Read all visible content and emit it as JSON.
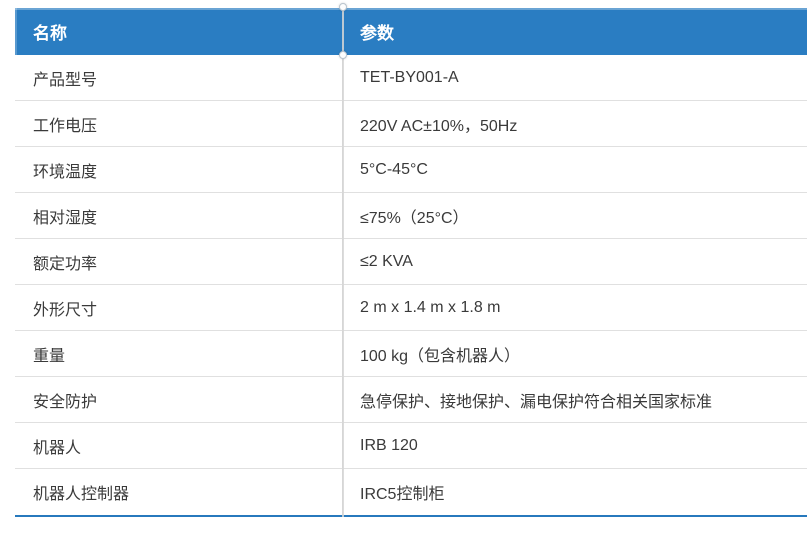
{
  "table": {
    "header": {
      "name": "名称",
      "param": "参数"
    },
    "rows": [
      {
        "label": "产品型号",
        "value": "TET-BY001-A"
      },
      {
        "label": "工作电压",
        "value": "220V AC±10%，50Hz"
      },
      {
        "label": "环境温度",
        "value": "5°C-45°C"
      },
      {
        "label": "相对湿度",
        "value": "≤75%（25°C）"
      },
      {
        "label": "额定功率",
        "value": "≤2 KVA"
      },
      {
        "label": "外形尺寸",
        "value": "2 m x 1.4 m x 1.8 m"
      },
      {
        "label": "重量",
        "value": "100 kg（包含机器人）"
      },
      {
        "label": "安全防护",
        "value": "急停保护、接地保护、漏电保护符合相关国家标准"
      },
      {
        "label": "机器人",
        "value": "IRB 120"
      },
      {
        "label": "机器人控制器",
        "value": "IRC5控制柜"
      }
    ],
    "colors": {
      "header_bg": "#2A7DC2",
      "header_text": "#FFFFFF",
      "body_text": "#3A3A3A",
      "row_divider": "#E0E0E0",
      "column_divider": "#D6D6D6",
      "bottom_border": "#2779BD"
    }
  }
}
